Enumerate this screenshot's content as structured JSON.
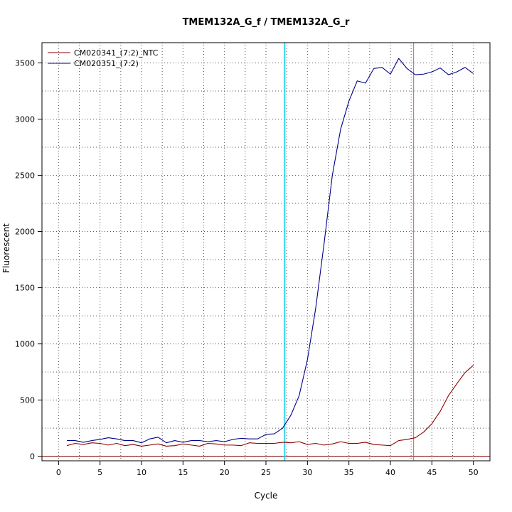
{
  "chart_data": {
    "type": "line",
    "title": "TMEM132A_G_f / TMEM132A_G_r",
    "xlabel": "Cycle",
    "ylabel": "Fluorescent",
    "xlim": [
      -2,
      52
    ],
    "ylim": [
      -40,
      3680
    ],
    "x_ticks": [
      0,
      5,
      10,
      15,
      20,
      25,
      30,
      35,
      40,
      45,
      50
    ],
    "y_ticks": [
      0,
      500,
      1000,
      1500,
      2000,
      2500,
      3000,
      3500
    ],
    "x_ticks_minor": [
      -2.5,
      2.5,
      7.5,
      12.5,
      17.5,
      22.5,
      27.5,
      32.5,
      37.5,
      42.5,
      47.5
    ],
    "grid": true,
    "legend_position": "top-left",
    "baseline": {
      "y": 0,
      "color": "#8b0000"
    },
    "threshold_lines": [
      {
        "x": 27.2,
        "color": "#00bfff"
      },
      {
        "x": 27.3,
        "color": "#40e0d0"
      },
      {
        "x": 42.8,
        "color": "#cd5c5c"
      }
    ],
    "series": [
      {
        "name": "CM020341_(7:2)_NTC",
        "color": "#8b0000",
        "x": [
          1,
          2,
          3,
          4,
          5,
          6,
          7,
          8,
          9,
          10,
          11,
          12,
          13,
          14,
          15,
          16,
          17,
          18,
          19,
          20,
          21,
          22,
          23,
          24,
          25,
          26,
          27,
          28,
          29,
          30,
          31,
          32,
          33,
          34,
          35,
          36,
          37,
          38,
          39,
          40,
          41,
          42,
          43,
          44,
          45,
          46,
          47,
          48,
          49,
          50
        ],
        "values": [
          95,
          115,
          105,
          120,
          115,
          100,
          115,
          95,
          105,
          90,
          100,
          110,
          90,
          95,
          110,
          100,
          90,
          115,
          110,
          100,
          100,
          95,
          120,
          115,
          115,
          115,
          125,
          120,
          130,
          105,
          115,
          100,
          110,
          130,
          115,
          115,
          125,
          105,
          100,
          95,
          140,
          150,
          165,
          215,
          290,
          400,
          540,
          645,
          745,
          810
        ]
      },
      {
        "name": "CM020351_(7:2)",
        "color": "#00008b",
        "x": [
          1,
          2,
          3,
          4,
          5,
          6,
          7,
          8,
          9,
          10,
          11,
          12,
          13,
          14,
          15,
          16,
          17,
          18,
          19,
          20,
          21,
          22,
          23,
          24,
          25,
          26,
          27,
          28,
          29,
          30,
          31,
          32,
          33,
          34,
          35,
          36,
          37,
          38,
          39,
          40,
          41,
          42,
          43,
          44,
          45,
          46,
          47,
          48,
          49,
          50
        ],
        "values": [
          140,
          140,
          125,
          140,
          150,
          165,
          155,
          140,
          140,
          120,
          155,
          170,
          120,
          140,
          125,
          140,
          140,
          130,
          140,
          130,
          150,
          160,
          155,
          155,
          195,
          200,
          250,
          365,
          540,
          860,
          1320,
          1890,
          2500,
          2910,
          3160,
          3340,
          3320,
          3450,
          3460,
          3400,
          3540,
          3450,
          3395,
          3400,
          3420,
          3455,
          3395,
          3420,
          3460,
          3405
        ]
      }
    ]
  }
}
